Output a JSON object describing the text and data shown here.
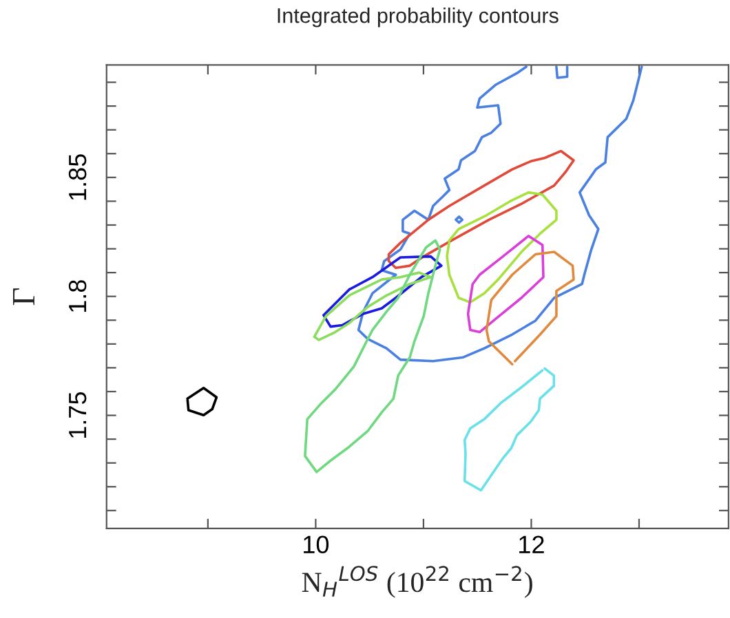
{
  "chart_data": {
    "type": "line",
    "title": "Integrated probability contours",
    "xlabel": "N$_{H}$$^{LOS}$ (10$^{22}$ cm$^{−2}$)",
    "ylabel": "Γ",
    "xlim": [
      8.06,
      13.83
    ],
    "ylim": [
      1.7025,
      1.8973
    ],
    "xticks": [
      {
        "value": 9,
        "label": null
      },
      10,
      {
        "value": 11,
        "label": null
      },
      12,
      {
        "value": 13,
        "label": null
      }
    ],
    "yticks": [
      {
        "value": 1.71,
        "label": null
      },
      {
        "value": 1.72,
        "label": null
      },
      {
        "value": 1.73,
        "label": null
      },
      {
        "value": 1.74,
        "label": null
      },
      1.75,
      {
        "value": 1.76,
        "label": null
      },
      {
        "value": 1.77,
        "label": null
      },
      {
        "value": 1.78,
        "label": null
      },
      {
        "value": 1.79,
        "label": null
      },
      1.8,
      {
        "value": 1.81,
        "label": null
      },
      {
        "value": 1.82,
        "label": null
      },
      {
        "value": 1.83,
        "label": null
      },
      {
        "value": 1.84,
        "label": null
      },
      1.85,
      {
        "value": 1.86,
        "label": null
      },
      {
        "value": 1.87,
        "label": null
      },
      {
        "value": 1.88,
        "label": null
      },
      {
        "value": 1.89,
        "label": null
      }
    ],
    "grid": false,
    "legend": false,
    "marker": "none",
    "line_style": "solid",
    "series": [
      {
        "color": "#4a80e0",
        "x": [
          11.953,
          11.866,
          11.672,
          11.521,
          11.499,
          11.693,
          11.715,
          11.629,
          11.542,
          11.477,
          11.348,
          11.326,
          11.197,
          11.24,
          11.175,
          11.089,
          11.045,
          10.916,
          10.808,
          10.808,
          10.873,
          10.786,
          10.635,
          10.613,
          10.743,
          10.527,
          10.441,
          10.397,
          10.484,
          10.657,
          10.786,
          11.089,
          11.369,
          11.564,
          11.823,
          12.039,
          12.212,
          12.471,
          12.492,
          12.557,
          12.622,
          12.536,
          12.449,
          12.6,
          12.687,
          12.708,
          12.881,
          12.946,
          12.989,
          13.024
        ],
        "values": [
          1.8965,
          1.8938,
          1.889,
          1.8832,
          1.8794,
          1.8803,
          1.8726,
          1.8688,
          1.8669,
          1.8611,
          1.8572,
          1.8534,
          1.8495,
          1.8447,
          1.8418,
          1.838,
          1.8322,
          1.836,
          1.8322,
          1.8274,
          1.8264,
          1.8197,
          1.8148,
          1.811,
          1.8091,
          1.8013,
          1.7936,
          1.7859,
          1.7821,
          1.7782,
          1.7734,
          1.7728,
          1.7744,
          1.7782,
          1.784,
          1.7898,
          1.7994,
          1.8052,
          1.8091,
          1.8197,
          1.8283,
          1.8341,
          1.8437,
          1.8534,
          1.8563,
          1.8669,
          1.8746,
          1.8823,
          1.89,
          1.8965
        ]
      },
      {
        "color": "#4a80e0",
        "x": [
          12.233,
          12.242,
          12.333,
          12.333
        ],
        "values": [
          1.8965,
          1.8919,
          1.8923,
          1.8965
        ]
      },
      {
        "color": "#4a80e0",
        "x": [
          11.3,
          11.33,
          11.36,
          11.33,
          11.303
        ],
        "values": [
          1.8322,
          1.8335,
          1.8322,
          1.831,
          1.8321
        ]
      },
      {
        "color": "#e04a3a",
        "x": [
          10.678,
          10.786,
          11.045,
          11.24,
          11.564,
          11.823,
          11.996,
          12.125,
          12.276,
          12.393,
          12.32,
          12.212,
          11.909,
          11.607,
          11.261,
          11.002,
          10.873,
          10.743,
          10.678,
          10.678
        ],
        "values": [
          1.8177,
          1.8225,
          1.8322,
          1.838,
          1.8466,
          1.8534,
          1.8568,
          1.8582,
          1.8611,
          1.8572,
          1.8524,
          1.8466,
          1.8389,
          1.8322,
          1.8235,
          1.8168,
          1.8129,
          1.812,
          1.8148,
          1.8174
        ]
      },
      {
        "color": "#a8e040",
        "x": [
          11.24,
          11.326,
          11.585,
          11.801,
          11.974,
          12.104,
          12.233,
          12.233,
          12.082,
          11.909,
          11.693,
          11.564,
          11.434,
          11.326,
          11.24,
          11.218,
          11.238
        ],
        "values": [
          1.8235,
          1.8283,
          1.8341,
          1.8399,
          1.8437,
          1.8428,
          1.836,
          1.8322,
          1.8264,
          1.8187,
          1.8071,
          1.8013,
          1.7975,
          1.7994,
          1.8091,
          1.8168,
          1.8228
        ]
      },
      {
        "color": "#d840d8",
        "x": [
          11.434,
          11.413,
          11.456,
          11.521,
          11.737,
          11.974,
          12.104,
          12.112,
          11.909,
          11.65,
          11.521,
          11.443
        ],
        "values": [
          1.7859,
          1.7927,
          1.8052,
          1.8091,
          1.8168,
          1.8254,
          1.8216,
          1.8081,
          1.7994,
          1.7898,
          1.785,
          1.7858
        ]
      },
      {
        "color": "#e08a40",
        "x": [
          11.823,
          11.607,
          11.585,
          11.629,
          11.823,
          12.039,
          12.212,
          12.384,
          12.393,
          12.233,
          12.233,
          12.082,
          11.849
        ],
        "values": [
          1.7715,
          1.7811,
          1.7859,
          1.7985,
          1.8091,
          1.8177,
          1.8187,
          1.8129,
          1.8071,
          1.8023,
          1.7917,
          1.784,
          1.7728
        ]
      },
      {
        "color": "#1a1ae0",
        "x": [
          10.073,
          10.311,
          10.527,
          10.786,
          11.067,
          11.166,
          10.981,
          10.743,
          10.613,
          10.441,
          10.246,
          10.138,
          10.08
        ],
        "values": [
          1.7921,
          1.8029,
          1.8081,
          1.8164,
          1.8168,
          1.8129,
          1.8081,
          1.7994,
          1.795,
          1.7927,
          1.7879,
          1.7873,
          1.7916
        ]
      },
      {
        "color": "#8cdc60",
        "x": [
          9.987,
          10.095,
          10.311,
          10.613,
          10.786,
          10.959,
          11.067,
          10.873,
          10.657,
          10.484,
          10.311,
          10.181,
          10.03,
          9.991
        ],
        "values": [
          1.783,
          1.7917,
          1.8004,
          1.8071,
          1.8081,
          1.81,
          1.8081,
          1.8052,
          1.8004,
          1.7956,
          1.7888,
          1.785,
          1.7817,
          1.7829
        ]
      },
      {
        "color": "#70d880",
        "x": [
          10.009,
          9.901,
          9.922,
          10.052,
          10.181,
          10.354,
          10.462,
          10.527,
          10.657,
          10.765,
          10.873,
          11.024,
          11.11,
          11.153,
          11.11,
          11.045,
          11.002,
          10.916,
          10.873,
          10.765,
          10.721,
          10.613,
          10.484,
          10.311,
          10.138,
          10.022
        ],
        "values": [
          1.7262,
          1.7329,
          1.7484,
          1.7551,
          1.7609,
          1.7705,
          1.7802,
          1.7859,
          1.7936,
          1.7994,
          1.8091,
          1.8206,
          1.8235,
          1.8197,
          1.8129,
          1.8013,
          1.7917,
          1.7811,
          1.7744,
          1.7667,
          1.757,
          1.7513,
          1.7435,
          1.7368,
          1.731,
          1.7267
        ]
      },
      {
        "color": "#6ae0e8",
        "x": [
          12.125,
          12.21,
          12.21,
          12.08,
          12.07,
          11.996,
          11.866,
          11.814,
          11.737,
          11.533,
          11.382,
          11.39,
          11.382,
          11.434,
          11.564,
          11.715,
          11.909,
          12.103
        ],
        "values": [
          1.7697,
          1.7667,
          1.7624,
          1.757,
          1.7522,
          1.7474,
          1.7416,
          1.7362,
          1.732,
          1.7185,
          1.7224,
          1.7339,
          1.7397,
          1.7445,
          1.7484,
          1.7551,
          1.7618,
          1.7689
        ]
      },
      {
        "color": "#000000",
        "x": [
          8.81,
          8.96,
          9.08,
          9.04,
          8.96,
          8.82,
          8.811
        ],
        "values": [
          1.757,
          1.7615,
          1.7576,
          1.7526,
          1.7501,
          1.7522,
          1.7565
        ]
      }
    ]
  }
}
